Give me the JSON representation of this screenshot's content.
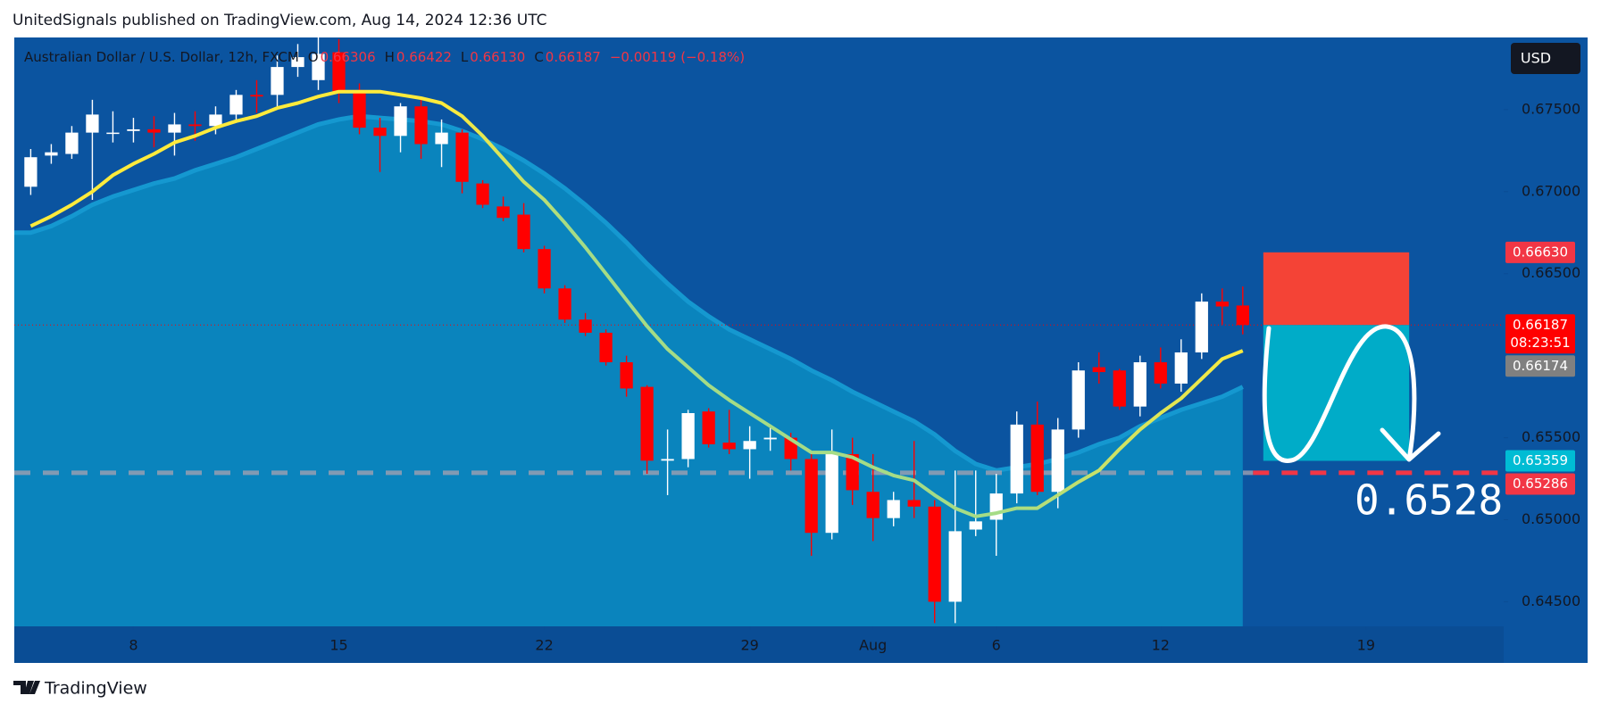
{
  "header": "UnitedSignals published on TradingView.com, Aug 14, 2024 12:36 UTC",
  "footer": "TradingView",
  "chart_data": {
    "type": "candlestick",
    "legend": {
      "symbol": "Australian Dollar / U.S. Dollar, 12h, FXCM",
      "o_label": "O",
      "open": "0.66306",
      "h_label": "H",
      "high": "0.66422",
      "l_label": "L",
      "low": "0.66130",
      "c_label": "C",
      "close": "0.66187",
      "change": "−0.00119 (−0.18%)"
    },
    "currency": "USD",
    "x": [
      0,
      1,
      2,
      3,
      4,
      5,
      6,
      7,
      8,
      9,
      10,
      11,
      12,
      13,
      14,
      15,
      16,
      17,
      18,
      19,
      20,
      21,
      22,
      23,
      24,
      25,
      26,
      27,
      28,
      29,
      30,
      31,
      32,
      33,
      34,
      35,
      36,
      37,
      38,
      39,
      40,
      41,
      42,
      43,
      44,
      45,
      46,
      47,
      48,
      49,
      50,
      51,
      52,
      53,
      54,
      55,
      56,
      57,
      58,
      59
    ],
    "open": [
      0.6703,
      0.6722,
      0.6723,
      0.6736,
      0.6736,
      0.6737,
      0.6738,
      0.6736,
      0.6741,
      0.674,
      0.6747,
      0.6759,
      0.6759,
      0.6776,
      0.6768,
      0.6785,
      0.6762,
      0.6739,
      0.6734,
      0.6752,
      0.6729,
      0.6736,
      0.6705,
      0.6691,
      0.6686,
      0.6665,
      0.6641,
      0.6622,
      0.6614,
      0.6596,
      0.6581,
      0.6536,
      0.6537,
      0.6566,
      0.6547,
      0.6543,
      0.6549,
      0.655,
      0.6537,
      0.6492,
      0.654,
      0.6517,
      0.6501,
      0.6512,
      0.6508,
      0.645,
      0.6494,
      0.65,
      0.6516,
      0.6558,
      0.6517,
      0.6555,
      0.6593,
      0.6591,
      0.6569,
      0.6596,
      0.6583,
      0.6602,
      0.6633,
      0.66306
    ],
    "high": [
      0.6726,
      0.6729,
      0.674,
      0.6756,
      0.6749,
      0.6745,
      0.6746,
      0.6748,
      0.6749,
      0.6752,
      0.6762,
      0.6768,
      0.6783,
      0.679,
      0.6794,
      0.6793,
      0.6766,
      0.6745,
      0.6754,
      0.6756,
      0.6744,
      0.6738,
      0.6707,
      0.6697,
      0.6693,
      0.6667,
      0.6643,
      0.6626,
      0.6616,
      0.66,
      0.6582,
      0.6555,
      0.6567,
      0.6568,
      0.6567,
      0.6557,
      0.6558,
      0.6553,
      0.654,
      0.6555,
      0.655,
      0.654,
      0.6517,
      0.6548,
      0.6512,
      0.653,
      0.653,
      0.6528,
      0.6566,
      0.6572,
      0.6562,
      0.6596,
      0.6602,
      0.6592,
      0.66,
      0.6605,
      0.661,
      0.6638,
      0.6641,
      0.66422
    ],
    "low": [
      0.6698,
      0.6717,
      0.672,
      0.6695,
      0.673,
      0.673,
      0.6727,
      0.6722,
      0.6731,
      0.6735,
      0.6743,
      0.6748,
      0.6752,
      0.677,
      0.6762,
      0.6754,
      0.6735,
      0.6712,
      0.6724,
      0.672,
      0.6715,
      0.6699,
      0.669,
      0.6682,
      0.6663,
      0.6638,
      0.662,
      0.6612,
      0.6594,
      0.6575,
      0.6528,
      0.6515,
      0.6532,
      0.6544,
      0.654,
      0.6525,
      0.6542,
      0.653,
      0.6478,
      0.6488,
      0.6509,
      0.6487,
      0.6496,
      0.6501,
      0.6437,
      0.6437,
      0.649,
      0.6478,
      0.651,
      0.6515,
      0.6507,
      0.655,
      0.6583,
      0.6567,
      0.6563,
      0.658,
      0.6578,
      0.6598,
      0.6619,
      0.6613
    ],
    "close": [
      0.6721,
      0.6724,
      0.6736,
      0.6747,
      0.6736,
      0.6738,
      0.6736,
      0.6741,
      0.674,
      0.6747,
      0.6759,
      0.6758,
      0.6776,
      0.6782,
      0.6784,
      0.6761,
      0.6739,
      0.6734,
      0.6752,
      0.6729,
      0.6736,
      0.6706,
      0.6692,
      0.6684,
      0.6665,
      0.6641,
      0.6622,
      0.6614,
      0.6596,
      0.658,
      0.6536,
      0.6537,
      0.6565,
      0.6546,
      0.6543,
      0.6548,
      0.655,
      0.6537,
      0.6492,
      0.654,
      0.6518,
      0.6501,
      0.6512,
      0.6508,
      0.645,
      0.6493,
      0.6499,
      0.6516,
      0.6558,
      0.6517,
      0.6555,
      0.6591,
      0.659,
      0.6569,
      0.6596,
      0.6583,
      0.6602,
      0.6633,
      0.663,
      0.66187
    ],
    "up_color": "#ffffff",
    "down_color": "#ff0000",
    "overlays": [
      {
        "type": "area",
        "color": "#0a84bd",
        "line_color": "#1598d0",
        "values": [
          0.6675,
          0.6679,
          0.6685,
          0.6692,
          0.6697,
          0.6701,
          0.6705,
          0.6708,
          0.6713,
          0.6717,
          0.6721,
          0.6726,
          0.6731,
          0.6736,
          0.6741,
          0.6744,
          0.6746,
          0.6745,
          0.6744,
          0.6743,
          0.6741,
          0.6737,
          0.6732,
          0.6726,
          0.6719,
          0.6711,
          0.6702,
          0.6692,
          0.6681,
          0.6669,
          0.6656,
          0.6644,
          0.6633,
          0.6624,
          0.6616,
          0.661,
          0.6604,
          0.6598,
          0.6591,
          0.6585,
          0.6578,
          0.6572,
          0.6566,
          0.656,
          0.6552,
          0.6542,
          0.6534,
          0.653,
          0.6532,
          0.6534,
          0.6537,
          0.6541,
          0.6546,
          0.655,
          0.6557,
          0.6562,
          0.6567,
          0.6571,
          0.6575,
          0.6581
        ]
      },
      {
        "type": "line",
        "color": "#ffeb3b",
        "color2": "#a5dc86",
        "values": [
          0.6679,
          0.6685,
          0.6692,
          0.67,
          0.671,
          0.6717,
          0.6723,
          0.673,
          0.6734,
          0.6739,
          0.6743,
          0.6746,
          0.6751,
          0.6754,
          0.6758,
          0.6761,
          0.6761,
          0.6761,
          0.6759,
          0.6757,
          0.6754,
          0.6746,
          0.6734,
          0.672,
          0.6706,
          0.6695,
          0.6681,
          0.6666,
          0.665,
          0.6634,
          0.6618,
          0.6604,
          0.6593,
          0.6582,
          0.6573,
          0.6565,
          0.6557,
          0.6549,
          0.6541,
          0.6541,
          0.6538,
          0.6532,
          0.6527,
          0.6524,
          0.6515,
          0.6507,
          0.6502,
          0.6504,
          0.6507,
          0.6507,
          0.6515,
          0.6523,
          0.653,
          0.6543,
          0.6555,
          0.6565,
          0.6574,
          0.6586,
          0.6598,
          0.6603
        ]
      }
    ],
    "xlim": [
      -0.8,
      71.7
    ],
    "xticks": [
      {
        "value": 5,
        "label": "8"
      },
      {
        "value": 15,
        "label": "15"
      },
      {
        "value": 25,
        "label": "22"
      },
      {
        "value": 35,
        "label": "29"
      },
      {
        "value": 41,
        "label": "Aug"
      },
      {
        "value": 47,
        "label": "6"
      },
      {
        "value": 55,
        "label": "12"
      },
      {
        "value": 65,
        "label": "19"
      }
    ],
    "ylim": [
      0.6435,
      0.6794
    ],
    "yticks": [
      {
        "value": 0.675,
        "label": "0.67500"
      },
      {
        "value": 0.67,
        "label": "0.67000"
      },
      {
        "value": 0.665,
        "label": "0.66500"
      },
      {
        "value": 0.655,
        "label": "0.65500"
      },
      {
        "value": 0.65,
        "label": "0.65000"
      },
      {
        "value": 0.645,
        "label": "0.64500"
      }
    ],
    "price_badges": [
      {
        "value": 0.6663,
        "label": "0.66630",
        "color": "#f23645"
      },
      {
        "value": 0.66187,
        "label": "0.66187",
        "sub": "08:23:51",
        "color": "#ff0000"
      },
      {
        "value": 0.66174,
        "label": "0.66174",
        "color": "#808080"
      },
      {
        "value": 0.65359,
        "label": "0.65359",
        "color": "#00bcd4"
      },
      {
        "value": 0.65286,
        "label": "0.65286",
        "color": "#f23645"
      }
    ],
    "position": {
      "start_x": 60,
      "end_x": 67.1,
      "stop_color": "#f44336",
      "target_color": "#00acc8"
    },
    "annotation": "0.6528"
  }
}
